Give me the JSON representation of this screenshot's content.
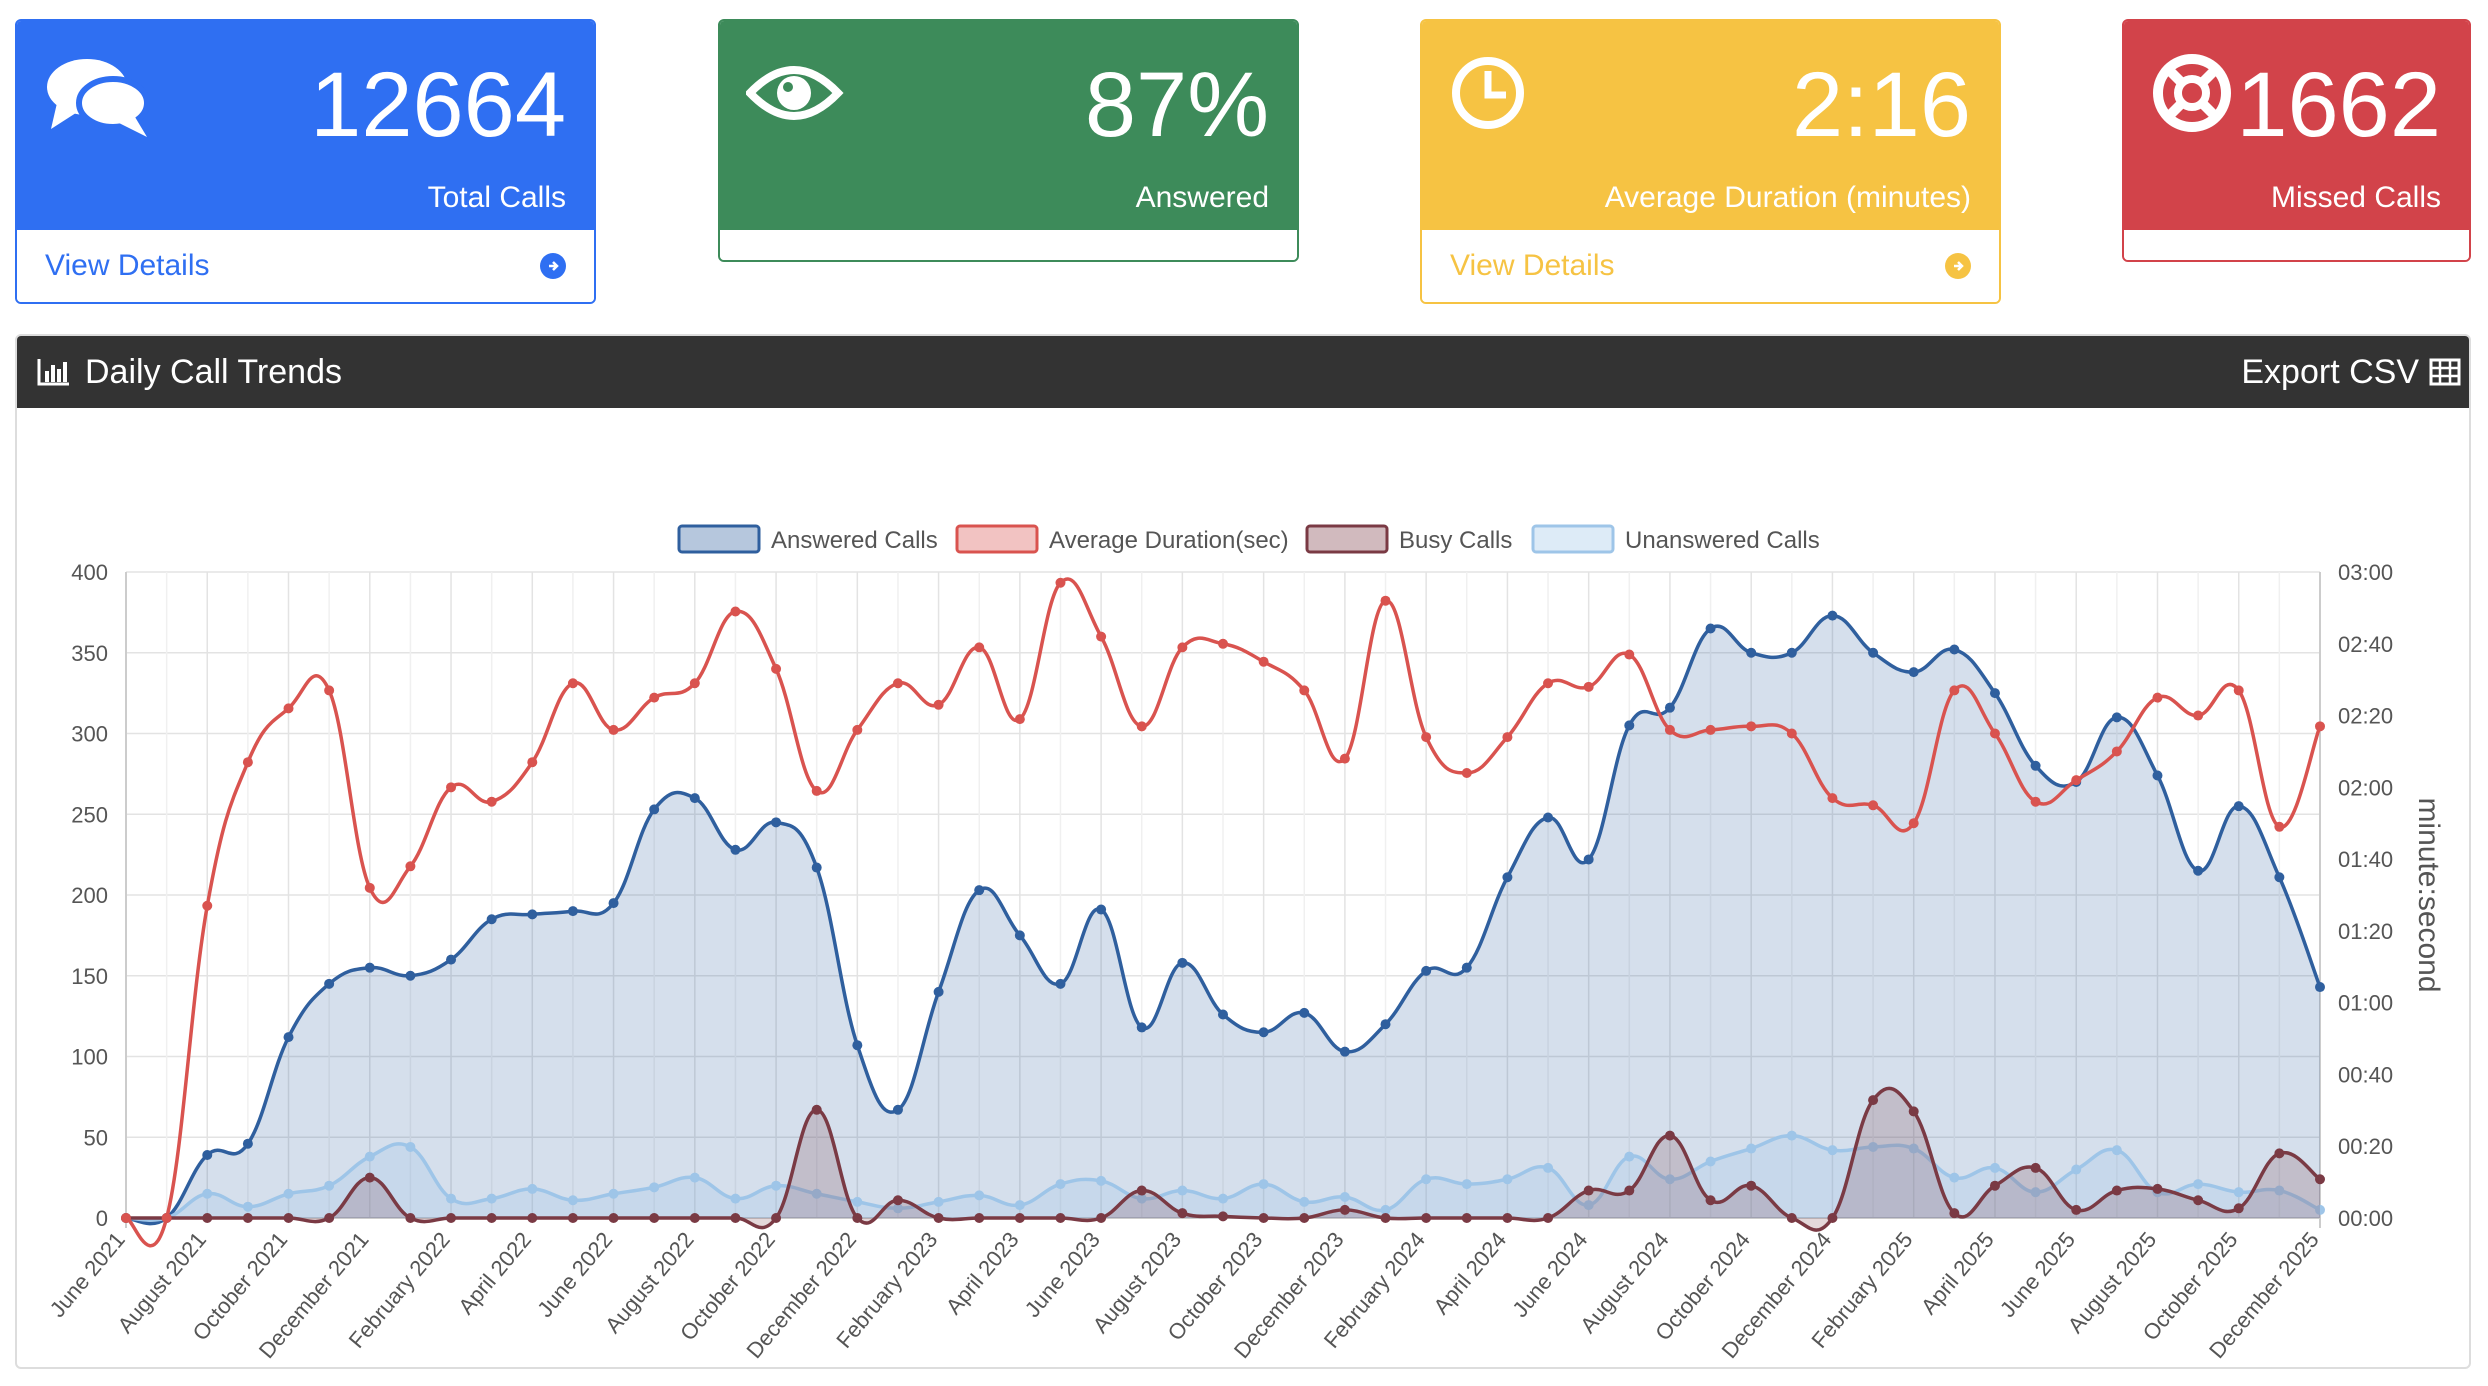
{
  "cards": [
    {
      "value": "12664",
      "label": "Total Calls",
      "link": "View Details",
      "color": "#2f6ff2",
      "icon": "comments-icon"
    },
    {
      "value": "87%",
      "label": "Answered",
      "link": "",
      "color": "#3d8b5a",
      "icon": "eye-icon"
    },
    {
      "value": "2:16",
      "label": "Average Duration (minutes)",
      "link": "View Details",
      "color": "#f6c343",
      "icon": "clock-icon"
    },
    {
      "value": "1662",
      "label": "Missed Calls",
      "link": "",
      "color": "#d2434a",
      "icon": "life-ring-icon"
    }
  ],
  "panel": {
    "title": "Daily Call Trends",
    "export_label": "Export CSV",
    "title_icon": "bar-chart-icon",
    "export_icon": "table-icon"
  },
  "chart_data": {
    "type": "line",
    "right_axis_label": "minute:second",
    "x": [
      "June 2021",
      "July 2021",
      "August 2021",
      "September 2021",
      "October 2021",
      "November 2021",
      "December 2021",
      "January 2022",
      "February 2022",
      "March 2022",
      "April 2022",
      "May 2022",
      "June 2022",
      "July 2022",
      "August 2022",
      "September 2022",
      "October 2022",
      "November 2022",
      "December 2022",
      "January 2023",
      "February 2023",
      "March 2023",
      "April 2023",
      "May 2023",
      "June 2023",
      "July 2023",
      "August 2023",
      "September 2023",
      "October 2023",
      "November 2023",
      "December 2023",
      "January 2024",
      "February 2024",
      "March 2024",
      "April 2024",
      "May 2024",
      "June 2024",
      "July 2024",
      "August 2024",
      "September 2024",
      "October 2024",
      "November 2024",
      "December 2024",
      "January 2025",
      "February 2025",
      "March 2025",
      "April 2025",
      "May 2025",
      "June 2025",
      "July 2025",
      "August 2025",
      "September 2025",
      "October 2025",
      "November 2025",
      "December 2025"
    ],
    "x_tick_labels": [
      "June 2021",
      "August 2021",
      "October 2021",
      "December 2021",
      "February 2022",
      "April 2022",
      "June 2022",
      "August 2022",
      "October 2022",
      "December 2022",
      "February 2023",
      "April 2023",
      "June 2023",
      "August 2023",
      "October 2023",
      "December 2023",
      "February 2024",
      "April 2024",
      "June 2024",
      "August 2024",
      "October 2024",
      "December 2024",
      "February 2025",
      "April 2025",
      "June 2025",
      "August 2025",
      "October 2025",
      "December 2025"
    ],
    "left_ylim": [
      0,
      400
    ],
    "left_ticks": [
      0,
      50,
      100,
      150,
      200,
      250,
      300,
      350,
      400
    ],
    "right_ylim": [
      0,
      180
    ],
    "right_ticks": [
      "00:00",
      "00:20",
      "00:40",
      "01:00",
      "01:20",
      "01:40",
      "02:00",
      "02:20",
      "02:40",
      "03:00"
    ],
    "grid": true,
    "legend": "top",
    "series": [
      {
        "name": "Answered Calls",
        "axis": "left",
        "color": "#2f5f9e",
        "fill": "rgba(47,95,158,0.2)",
        "values": [
          0,
          0,
          39,
          46,
          112,
          145,
          155,
          150,
          160,
          185,
          188,
          190,
          195,
          253,
          260,
          228,
          245,
          217,
          107,
          67,
          140,
          203,
          175,
          145,
          191,
          118,
          158,
          126,
          115,
          127,
          103,
          120,
          153,
          155,
          211,
          248,
          222,
          305,
          316,
          365,
          350,
          350,
          373,
          350,
          338,
          352,
          325,
          280,
          270,
          310,
          274,
          215,
          255,
          211,
          143
        ]
      },
      {
        "name": "Average Duration(sec)",
        "axis": "right",
        "color": "#d9534f",
        "fill": "rgba(217,83,79,0.2)",
        "values": [
          0,
          0,
          87,
          127,
          142,
          147,
          92,
          98,
          120,
          116,
          127,
          149,
          136,
          145,
          149,
          169,
          153,
          119,
          136,
          149,
          143,
          159,
          139,
          177,
          162,
          137,
          159,
          160,
          155,
          147,
          128,
          172,
          134,
          124,
          134,
          149,
          148,
          157,
          136,
          136,
          137,
          135,
          117,
          115,
          110,
          147,
          135,
          116,
          122,
          130,
          145,
          140,
          147,
          109,
          137
        ]
      },
      {
        "name": "Busy Calls",
        "axis": "left",
        "color": "#7a3a44",
        "fill": "rgba(122,58,68,0.2)",
        "values": [
          0,
          0,
          0,
          0,
          0,
          0,
          25,
          0,
          0,
          0,
          0,
          0,
          0,
          0,
          0,
          0,
          0,
          67,
          0,
          11,
          0,
          0,
          0,
          0,
          0,
          17,
          3,
          1,
          0,
          0,
          5,
          0,
          0,
          0,
          0,
          0,
          17,
          17,
          51,
          11,
          20,
          0,
          0,
          73,
          66,
          3,
          20,
          31,
          5,
          17,
          18,
          11,
          6,
          40,
          24
        ]
      },
      {
        "name": "Unanswered Calls",
        "axis": "left",
        "color": "#9ec5e8",
        "fill": "rgba(158,197,232,0.25)",
        "values": [
          0,
          0,
          15,
          7,
          15,
          20,
          38,
          44,
          12,
          12,
          18,
          11,
          15,
          19,
          25,
          12,
          20,
          15,
          10,
          6,
          10,
          14,
          8,
          21,
          23,
          12,
          17,
          12,
          21,
          10,
          13,
          5,
          24,
          21,
          24,
          31,
          8,
          38,
          24,
          35,
          43,
          51,
          42,
          44,
          43,
          25,
          31,
          16,
          30,
          42,
          16,
          21,
          16,
          17,
          5
        ]
      }
    ]
  }
}
